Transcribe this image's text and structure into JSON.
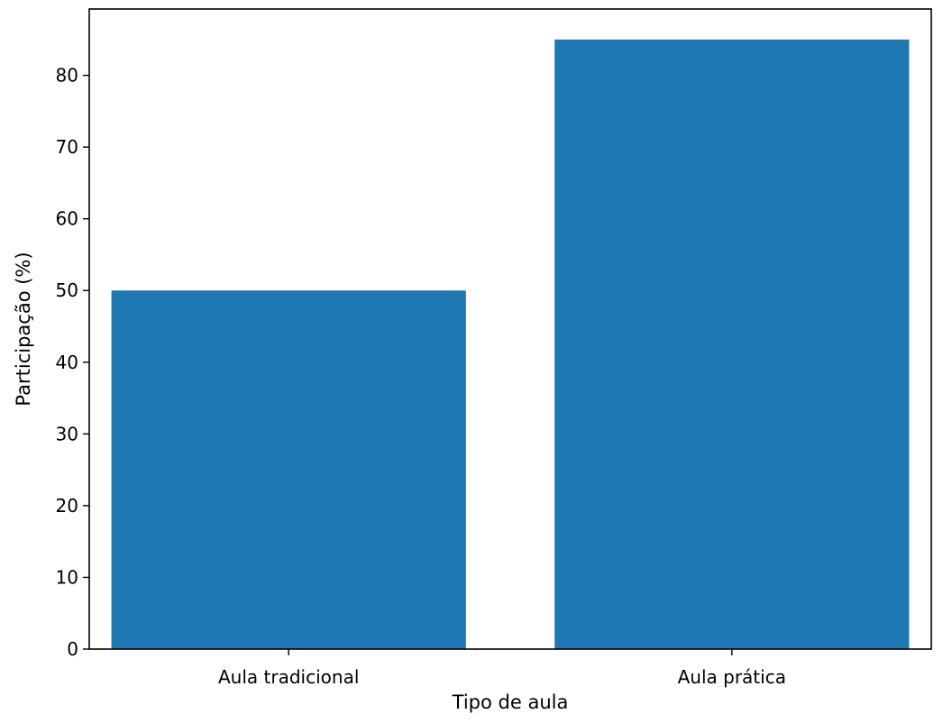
{
  "chart_data": {
    "type": "bar",
    "title": "",
    "xlabel": "Tipo de aula",
    "ylabel": "Participação (%)",
    "categories": [
      "Aula tradicional",
      "Aula prática"
    ],
    "values": [
      50,
      85
    ],
    "ylim": [
      0,
      89.25
    ],
    "yticks": [
      0,
      10,
      20,
      30,
      40,
      50,
      60,
      70,
      80
    ],
    "bar_color": "#1f77b4",
    "grid": false,
    "legend": "none"
  }
}
